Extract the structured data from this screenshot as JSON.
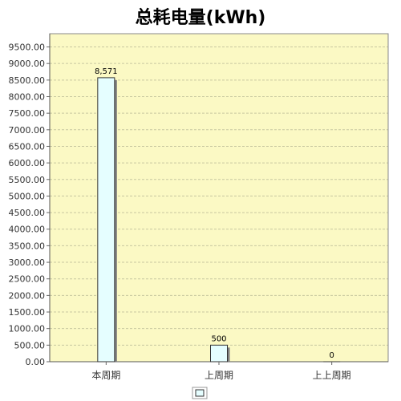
{
  "chart_data": {
    "type": "bar",
    "title": "总耗电量(kWh)",
    "categories": [
      "本周期",
      "上周期",
      "上上周期"
    ],
    "values": [
      8571,
      500,
      0
    ],
    "data_labels": [
      "8,571",
      "500",
      "0"
    ],
    "ylim": [
      0,
      9900
    ],
    "yticks": [
      0,
      500,
      1000,
      1500,
      2000,
      2500,
      3000,
      3500,
      4000,
      4500,
      5000,
      5500,
      6000,
      6500,
      7000,
      7500,
      8000,
      8500,
      9000,
      9500
    ],
    "ytick_labels": [
      "0.00",
      "500.00",
      "1000.00",
      "1500.00",
      "2000.00",
      "2500.00",
      "3000.00",
      "3500.00",
      "4000.00",
      "4500.00",
      "5000.00",
      "5500.00",
      "6000.00",
      "6500.00",
      "7000.00",
      "7500.00",
      "8000.00",
      "8500.00",
      "9000.00",
      "9500.00"
    ],
    "grid": true,
    "legend": "bottom-center",
    "colors": {
      "plot_background": "#fbf9c4",
      "bar_fill": "#e5feff",
      "bar_stroke": "#333333",
      "bar_shadow": "#808080",
      "grid": "#c8c8a0"
    }
  }
}
